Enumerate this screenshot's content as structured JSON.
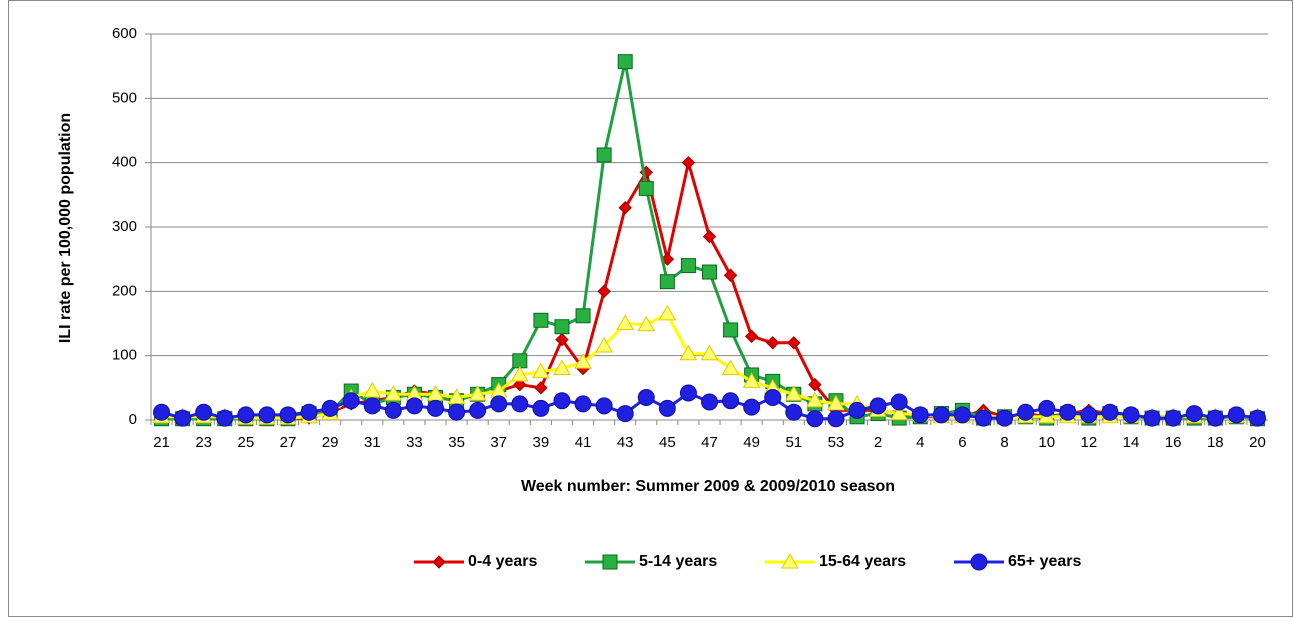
{
  "chart_data": {
    "type": "line",
    "y_label": "ILI rate per 100,000 population",
    "x_label": "Week number: Summer 2009 & 2009/2010 season",
    "categories": [
      21,
      null,
      23,
      null,
      25,
      null,
      27,
      null,
      29,
      null,
      31,
      null,
      33,
      null,
      35,
      null,
      37,
      null,
      39,
      null,
      41,
      null,
      43,
      null,
      45,
      null,
      47,
      null,
      49,
      null,
      51,
      null,
      53,
      null,
      2,
      null,
      4,
      null,
      6,
      null,
      8,
      null,
      10,
      null,
      12,
      null,
      14,
      null,
      16,
      null,
      18,
      null,
      20
    ],
    "series": [
      {
        "name": "0-4 years",
        "color": "#e00000",
        "marker": "diamond",
        "values": [
          5,
          3,
          5,
          3,
          3,
          3,
          3,
          3,
          12,
          25,
          30,
          35,
          45,
          40,
          35,
          40,
          45,
          55,
          50,
          125,
          80,
          200,
          330,
          385,
          250,
          400,
          285,
          225,
          130,
          120,
          120,
          55,
          15,
          15,
          15,
          10,
          5,
          5,
          5,
          15,
          5,
          10,
          5,
          10,
          15,
          10,
          5,
          5,
          5,
          5,
          5,
          5,
          5
        ]
      },
      {
        "name": "5-14 years",
        "color": "#1fa040",
        "marker": "square",
        "values": [
          2,
          2,
          2,
          2,
          2,
          2,
          2,
          10,
          12,
          45,
          25,
          35,
          40,
          35,
          30,
          40,
          55,
          92,
          155,
          145,
          162,
          412,
          557,
          360,
          215,
          240,
          230,
          140,
          70,
          60,
          40,
          25,
          30,
          5,
          10,
          3,
          5,
          10,
          15,
          3,
          5,
          5,
          3,
          10,
          3,
          10,
          5,
          3,
          3,
          3,
          3,
          5,
          2
        ]
      },
      {
        "name": "15-64 years",
        "color": "#ffff00",
        "marker": "triangle",
        "values": [
          5,
          5,
          5,
          5,
          3,
          3,
          3,
          5,
          10,
          35,
          45,
          40,
          40,
          40,
          35,
          40,
          45,
          70,
          75,
          80,
          90,
          115,
          150,
          148,
          165,
          103,
          103,
          80,
          60,
          50,
          40,
          30,
          25,
          25,
          15,
          10,
          8,
          5,
          5,
          5,
          5,
          5,
          5,
          5,
          5,
          5,
          5,
          5,
          5,
          5,
          5,
          5,
          5
        ]
      },
      {
        "name": "65+ years",
        "color": "#2020e0",
        "marker": "circle",
        "values": [
          12,
          3,
          12,
          3,
          8,
          8,
          8,
          12,
          18,
          30,
          22,
          15,
          22,
          18,
          12,
          15,
          25,
          25,
          18,
          30,
          25,
          22,
          10,
          35,
          18,
          42,
          28,
          30,
          20,
          35,
          12,
          2,
          2,
          15,
          22,
          28,
          8,
          8,
          8,
          3,
          3,
          12,
          18,
          12,
          8,
          12,
          8,
          3,
          3,
          10,
          3,
          8,
          3
        ]
      }
    ],
    "ylim": [
      0,
      600
    ],
    "yticks": [
      0,
      100,
      200,
      300,
      400,
      500,
      600
    ],
    "grid": true,
    "legend": "bottom"
  }
}
